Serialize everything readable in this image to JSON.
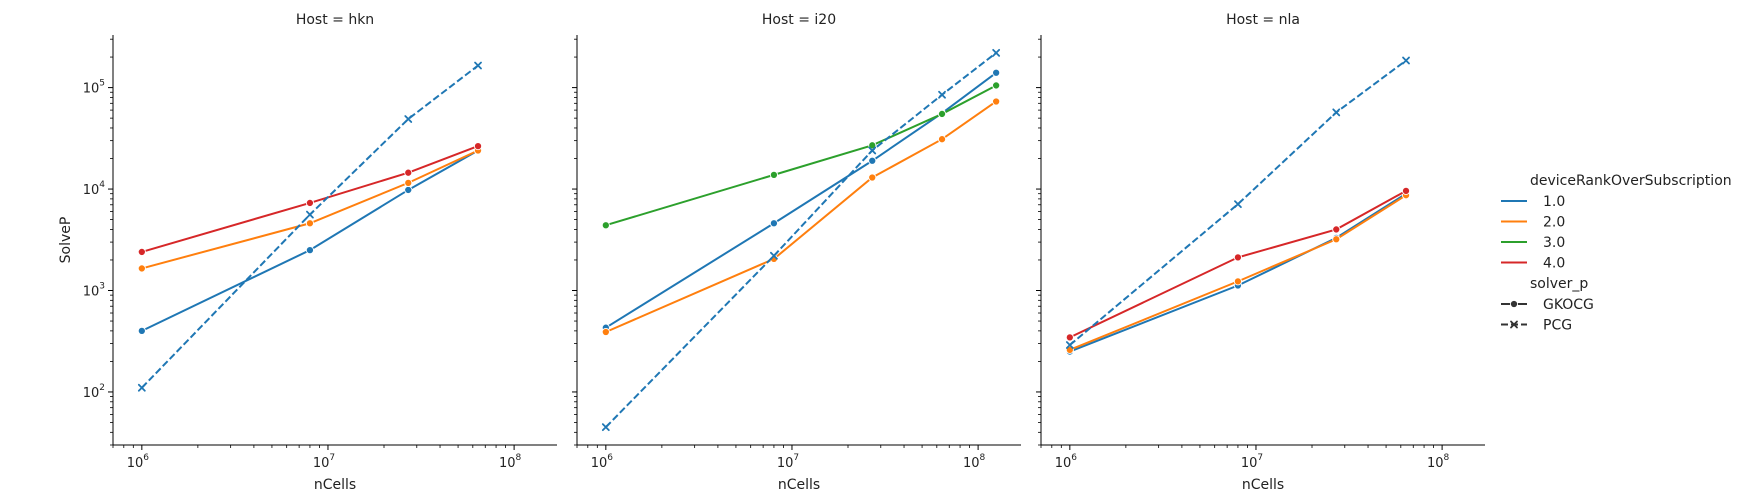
{
  "chart_data": {
    "type": "line",
    "x_scale": "log",
    "y_scale": "log",
    "xlabel": "nCells",
    "ylabel": "SolveP",
    "xlim": [
      700000,
      170000000
    ],
    "ylim": [
      30,
      330000
    ],
    "x_ticks": [
      {
        "value": 1000000,
        "base": "10",
        "exp": "6"
      },
      {
        "value": 10000000,
        "base": "10",
        "exp": "7"
      },
      {
        "value": 100000000,
        "base": "10",
        "exp": "8"
      }
    ],
    "y_ticks": [
      {
        "value": 100,
        "base": "10",
        "exp": "2"
      },
      {
        "value": 1000,
        "base": "10",
        "exp": "3"
      },
      {
        "value": 10000,
        "base": "10",
        "exp": "4"
      },
      {
        "value": 100000,
        "base": "10",
        "exp": "5"
      }
    ],
    "grid": false,
    "legend_placement": "right",
    "legend": {
      "hue_title": "deviceRankOverSubscription",
      "hue_entries": [
        {
          "label": "1.0",
          "color": "#1f77b4"
        },
        {
          "label": "2.0",
          "color": "#ff7f0e"
        },
        {
          "label": "3.0",
          "color": "#2ca02c"
        },
        {
          "label": "4.0",
          "color": "#d62728"
        }
      ],
      "style_title": "solver_p",
      "style_entries": [
        {
          "label": "GKOCG",
          "marker": "circle",
          "dashed": false
        },
        {
          "label": "PCG",
          "marker": "x",
          "dashed": true
        }
      ]
    },
    "panels": [
      {
        "title": "Host = hkn",
        "series": [
          {
            "hue": "1.0",
            "style": "GKOCG",
            "color": "#1f77b4",
            "x": [
              1000000,
              8000000,
              27000000,
              64000000
            ],
            "y": [
              400,
              2500,
              9800,
              24000
            ]
          },
          {
            "hue": "2.0",
            "style": "GKOCG",
            "color": "#ff7f0e",
            "x": [
              1000000,
              8000000,
              27000000,
              64000000
            ],
            "y": [
              1650,
              4600,
              11500,
              24000
            ]
          },
          {
            "hue": "4.0",
            "style": "GKOCG",
            "color": "#d62728",
            "x": [
              1000000,
              8000000,
              27000000,
              64000000
            ],
            "y": [
              2400,
              7300,
              14500,
              26500
            ]
          },
          {
            "hue": "1.0",
            "style": "PCG",
            "color": "#1f77b4",
            "x": [
              1000000,
              8000000,
              27000000,
              64000000
            ],
            "y": [
              110,
              5600,
              49000,
              165000
            ]
          }
        ]
      },
      {
        "title": "Host = i20",
        "series": [
          {
            "hue": "1.0",
            "style": "GKOCG",
            "color": "#1f77b4",
            "x": [
              1000000,
              8000000,
              27000000,
              64000000,
              125000000
            ],
            "y": [
              430,
              4600,
              19000,
              56000,
              140000
            ]
          },
          {
            "hue": "2.0",
            "style": "GKOCG",
            "color": "#ff7f0e",
            "x": [
              1000000,
              8000000,
              27000000,
              64000000,
              125000000
            ],
            "y": [
              390,
              2050,
              13000,
              31000,
              73000
            ]
          },
          {
            "hue": "3.0",
            "style": "GKOCG",
            "color": "#2ca02c",
            "x": [
              1000000,
              8000000,
              27000000,
              64000000,
              125000000
            ],
            "y": [
              4400,
              13800,
              27000,
              55000,
              105000
            ]
          },
          {
            "hue": "1.0",
            "style": "PCG",
            "color": "#1f77b4",
            "x": [
              1000000,
              8000000,
              27000000,
              64000000,
              125000000
            ],
            "y": [
              45,
              2200,
              24000,
              85000,
              220000
            ]
          }
        ]
      },
      {
        "title": "Host = nla",
        "series": [
          {
            "hue": "1.0",
            "style": "GKOCG",
            "color": "#1f77b4",
            "x": [
              1000000,
              8000000,
              27000000,
              64000000
            ],
            "y": [
              250,
              1120,
              3300,
              9000
            ]
          },
          {
            "hue": "2.0",
            "style": "GKOCG",
            "color": "#ff7f0e",
            "x": [
              1000000,
              8000000,
              27000000,
              64000000
            ],
            "y": [
              260,
              1230,
              3200,
              8700
            ]
          },
          {
            "hue": "4.0",
            "style": "GKOCG",
            "color": "#d62728",
            "x": [
              1000000,
              8000000,
              27000000,
              64000000
            ],
            "y": [
              345,
              2120,
              4000,
              9600
            ]
          },
          {
            "hue": "1.0",
            "style": "PCG",
            "color": "#1f77b4",
            "x": [
              1000000,
              8000000,
              27000000,
              64000000
            ],
            "y": [
              290,
              7100,
              57000,
              185000
            ]
          }
        ]
      }
    ]
  }
}
